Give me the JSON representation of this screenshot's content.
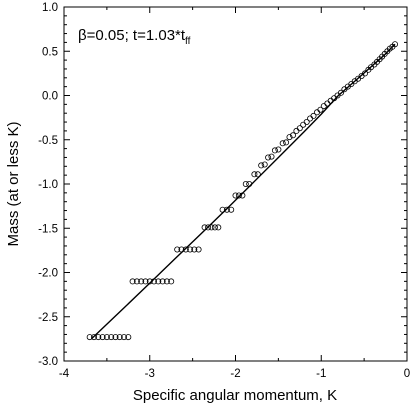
{
  "chart_data": {
    "type": "scatter",
    "xlabel": "Specific angular momentum, K",
    "ylabel": "Mass (at or less K)",
    "xlim": [
      -4,
      0
    ],
    "ylim": [
      -3.0,
      1.0
    ],
    "x_ticks": [
      {
        "value": -4,
        "label": "-4"
      },
      {
        "value": -3,
        "label": "-3"
      },
      {
        "value": -2,
        "label": "-2"
      },
      {
        "value": -1,
        "label": "-1"
      },
      {
        "value": 0,
        "label": "0"
      }
    ],
    "y_ticks": [
      {
        "value": 1.0,
        "label": "1.0"
      },
      {
        "value": 0.5,
        "label": "0.5"
      },
      {
        "value": 0.0,
        "label": "0.0"
      },
      {
        "value": -0.5,
        "label": "-0.5"
      },
      {
        "value": -1.0,
        "label": "-1.0"
      },
      {
        "value": -1.5,
        "label": "-1.5"
      },
      {
        "value": -2.0,
        "label": "-2.0"
      },
      {
        "value": -2.5,
        "label": "-2.5"
      },
      {
        "value": -3.0,
        "label": "-3.0"
      }
    ],
    "annotation": {
      "main": "β=0.05;  t=1.03*t",
      "subscript": "ff"
    },
    "grid": false,
    "series": [
      {
        "marker": "open-circle",
        "points": [
          [
            -3.7,
            -2.73
          ],
          [
            -3.65,
            -2.73
          ],
          [
            -3.6,
            -2.73
          ],
          [
            -3.55,
            -2.73
          ],
          [
            -3.5,
            -2.73
          ],
          [
            -3.45,
            -2.73
          ],
          [
            -3.4,
            -2.73
          ],
          [
            -3.35,
            -2.73
          ],
          [
            -3.3,
            -2.73
          ],
          [
            -3.25,
            -2.73
          ],
          [
            -3.2,
            -2.1
          ],
          [
            -3.15,
            -2.1
          ],
          [
            -3.1,
            -2.1
          ],
          [
            -3.05,
            -2.1
          ],
          [
            -3.0,
            -2.1
          ],
          [
            -2.95,
            -2.1
          ],
          [
            -2.9,
            -2.1
          ],
          [
            -2.85,
            -2.1
          ],
          [
            -2.8,
            -2.1
          ],
          [
            -2.75,
            -2.1
          ],
          [
            -2.68,
            -1.74
          ],
          [
            -2.63,
            -1.74
          ],
          [
            -2.58,
            -1.74
          ],
          [
            -2.53,
            -1.74
          ],
          [
            -2.48,
            -1.74
          ],
          [
            -2.43,
            -1.74
          ],
          [
            -2.36,
            -1.49
          ],
          [
            -2.32,
            -1.49
          ],
          [
            -2.28,
            -1.49
          ],
          [
            -2.24,
            -1.49
          ],
          [
            -2.2,
            -1.49
          ],
          [
            -2.15,
            -1.29
          ],
          [
            -2.1,
            -1.29
          ],
          [
            -2.05,
            -1.29
          ],
          [
            -2.0,
            -1.13
          ],
          [
            -1.96,
            -1.13
          ],
          [
            -1.92,
            -1.13
          ],
          [
            -1.88,
            -1.0
          ],
          [
            -1.84,
            -1.0
          ],
          [
            -1.78,
            -0.89
          ],
          [
            -1.74,
            -0.89
          ],
          [
            -1.7,
            -0.79
          ],
          [
            -1.66,
            -0.78
          ],
          [
            -1.62,
            -0.7
          ],
          [
            -1.58,
            -0.69
          ],
          [
            -1.54,
            -0.62
          ],
          [
            -1.5,
            -0.61
          ],
          [
            -1.45,
            -0.54
          ],
          [
            -1.41,
            -0.53
          ],
          [
            -1.37,
            -0.47
          ],
          [
            -1.33,
            -0.45
          ],
          [
            -1.29,
            -0.4
          ],
          [
            -1.25,
            -0.37
          ],
          [
            -1.21,
            -0.33
          ],
          [
            -1.17,
            -0.3
          ],
          [
            -1.13,
            -0.26
          ],
          [
            -1.09,
            -0.23
          ],
          [
            -1.05,
            -0.19
          ],
          [
            -1.01,
            -0.16
          ],
          [
            -0.97,
            -0.12
          ],
          [
            -0.93,
            -0.09
          ],
          [
            -0.89,
            -0.06
          ],
          [
            -0.85,
            -0.03
          ],
          [
            -0.81,
            0.0
          ],
          [
            -0.77,
            0.03
          ],
          [
            -0.73,
            0.07
          ],
          [
            -0.69,
            0.1
          ],
          [
            -0.65,
            0.13
          ],
          [
            -0.61,
            0.16
          ],
          [
            -0.57,
            0.19
          ],
          [
            -0.53,
            0.22
          ],
          [
            -0.49,
            0.25
          ],
          [
            -0.45,
            0.29
          ],
          [
            -0.42,
            0.32
          ],
          [
            -0.38,
            0.35
          ],
          [
            -0.35,
            0.38
          ],
          [
            -0.32,
            0.41
          ],
          [
            -0.29,
            0.44
          ],
          [
            -0.26,
            0.47
          ],
          [
            -0.23,
            0.5
          ],
          [
            -0.2,
            0.53
          ],
          [
            -0.17,
            0.55
          ],
          [
            -0.14,
            0.58
          ]
        ]
      },
      {
        "marker": "line",
        "points": [
          [
            -3.68,
            -2.75
          ],
          [
            -3.3,
            -2.4
          ],
          [
            -3.0,
            -2.12
          ],
          [
            -2.7,
            -1.84
          ],
          [
            -2.4,
            -1.56
          ],
          [
            -2.1,
            -1.28
          ],
          [
            -1.8,
            -0.99
          ],
          [
            -1.5,
            -0.7
          ],
          [
            -1.2,
            -0.41
          ],
          [
            -1.0,
            -0.21
          ],
          [
            -0.8,
            0.0
          ],
          [
            -0.6,
            0.17
          ],
          [
            -0.4,
            0.34
          ],
          [
            -0.25,
            0.47
          ],
          [
            -0.14,
            0.58
          ]
        ]
      }
    ]
  }
}
